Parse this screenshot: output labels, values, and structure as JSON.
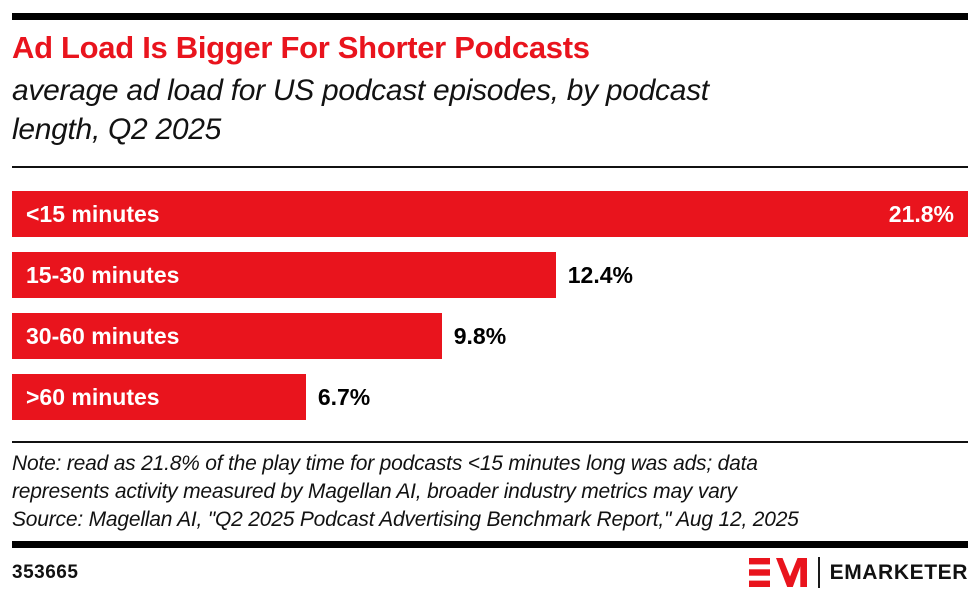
{
  "header": {
    "title": "Ad Load Is Bigger For Shorter Podcasts",
    "subtitle_line1": "average ad load for US podcast episodes, by podcast",
    "subtitle_line2": "length, Q2 2025"
  },
  "chart_data": {
    "type": "bar",
    "orientation": "horizontal",
    "title": "Ad Load Is Bigger For Shorter Podcasts",
    "subtitle": "average ad load for US podcast episodes, by podcast length, Q2 2025",
    "categories": [
      "<15 minutes",
      "15-30 minutes",
      "30-60 minutes",
      ">60 minutes"
    ],
    "values": [
      21.8,
      12.4,
      9.8,
      6.7
    ],
    "value_labels": [
      "21.8%",
      "12.4%",
      "9.8%",
      "6.7%"
    ],
    "unit": "%",
    "xlim": [
      0,
      21.8
    ],
    "bar_color": "#e9141d",
    "grid": false,
    "legend": false
  },
  "note": {
    "line1": "Note: read as 21.8% of the play time for podcasts <15 minutes long was ads; data",
    "line2": "represents activity measured by Magellan AI, broader industry metrics may vary",
    "source": "Source: Magellan AI, \"Q2 2025 Podcast Advertising Benchmark Report,\" Aug 12, 2025"
  },
  "footer": {
    "chart_id": "353665",
    "brand": "EMARKETER"
  },
  "colors": {
    "accent_red": "#e9141d",
    "text_black": "#121212",
    "background": "#ffffff"
  }
}
